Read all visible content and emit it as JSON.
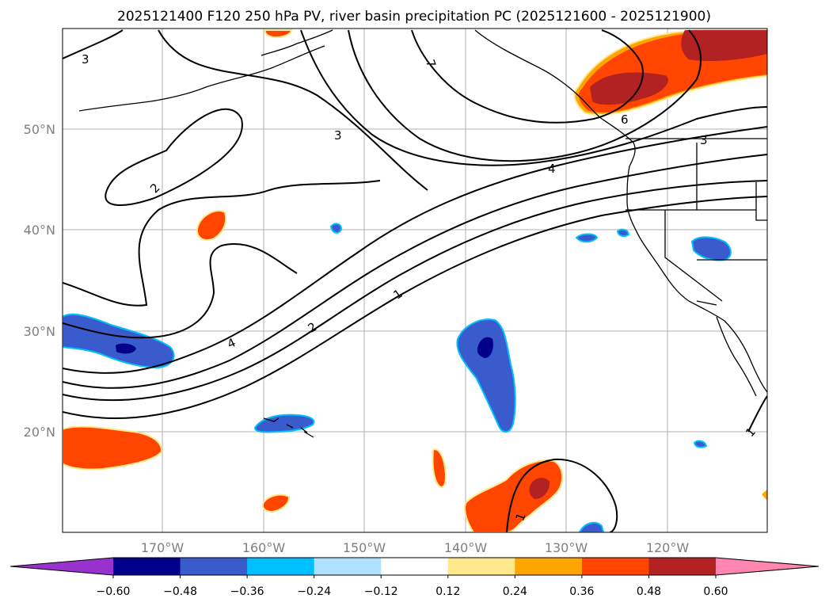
{
  "title": "2025121400 F120 250 hPa PV, river basin precipitation PC (2025121600 - 2025121900)",
  "map": {
    "lat_labels": [
      "50°N",
      "40°N",
      "30°N",
      "20°N"
    ],
    "lon_labels": [
      "170°W",
      "160°W",
      "150°W",
      "140°W",
      "130°W",
      "120°W"
    ],
    "contour_labels": [
      "3",
      "7",
      "3",
      "2",
      "6",
      "3",
      "4",
      "1",
      "2",
      "4",
      "1",
      "1"
    ],
    "colors": {
      "coast": "#000000",
      "grid": "#b0b0b0",
      "pv_contour": "#000000",
      "pos_strong": "#b22222",
      "pos_mid": "#ff4500",
      "pos_weak": "#ffa500",
      "pos_edge": "#ffe88c",
      "neg_strong": "#00008b",
      "neg_mid": "#3a5bcc",
      "neg_weak": "#00bfff",
      "neg_edge": "#b0e0ff"
    }
  },
  "colorbar": {
    "ticks": [
      "−0.60",
      "−0.48",
      "−0.36",
      "−0.24",
      "−0.12",
      "0.12",
      "0.24",
      "0.36",
      "0.48",
      "0.60"
    ],
    "bins": [
      {
        "name": "under",
        "color": "#9932cc"
      },
      {
        "name": "-0.60 to -0.48",
        "color": "#00008b"
      },
      {
        "name": "-0.48 to -0.36",
        "color": "#3a5bcc"
      },
      {
        "name": "-0.36 to -0.24",
        "color": "#00bfff"
      },
      {
        "name": "-0.24 to -0.12",
        "color": "#b0e0ff"
      },
      {
        "name": "-0.12 to 0.12",
        "color": "#ffffff"
      },
      {
        "name": "0.12 to 0.24",
        "color": "#ffe88c"
      },
      {
        "name": "0.24 to 0.36",
        "color": "#ffa500"
      },
      {
        "name": "0.36 to 0.48",
        "color": "#ff4500"
      },
      {
        "name": "0.48 to 0.60",
        "color": "#b22222"
      },
      {
        "name": "over",
        "color": "#ff86b0"
      }
    ]
  }
}
